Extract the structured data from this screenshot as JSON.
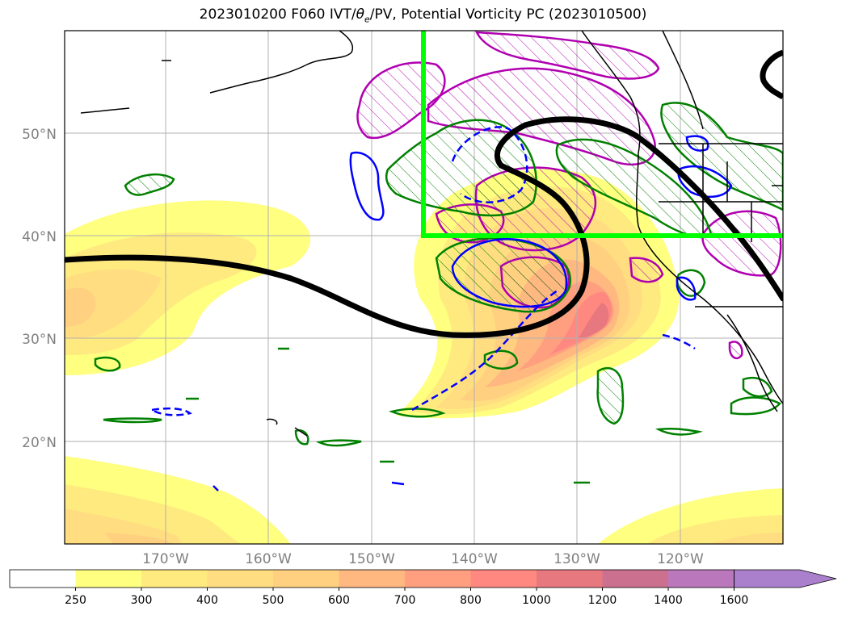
{
  "title": {
    "prefix": "2023010200 F060 IVT/",
    "theta": "θ",
    "theta_sub": "e",
    "suffix": "/PV, Potential Vorticity PC (2023010500)"
  },
  "map": {
    "lat_labels": [
      "50°N",
      "40°N",
      "30°N",
      "20°N"
    ],
    "lon_labels": [
      "170°W",
      "160°W",
      "150°W",
      "140°W",
      "130°W",
      "120°W"
    ],
    "colors": {
      "pv_contour": "#008000",
      "pv_hatch_region": "#b000b0",
      "negative_contour": "#0000ff",
      "highlight_box": "#00ff00",
      "jet_line": "#000000",
      "coastline": "#000000",
      "grid": "#b0b0b0"
    }
  },
  "colorbar": {
    "levels": [
      "250",
      "300",
      "400",
      "500",
      "600",
      "700",
      "800",
      "1000",
      "1200",
      "1400",
      "1600"
    ],
    "colors": [
      "#ffffff",
      "#ffff80",
      "#ffea80",
      "#ffdd80",
      "#ffd080",
      "#ffb880",
      "#ff9f80",
      "#ff8880",
      "#e87880",
      "#cc7090",
      "#bb77bb",
      "#aa80cc"
    ]
  }
}
